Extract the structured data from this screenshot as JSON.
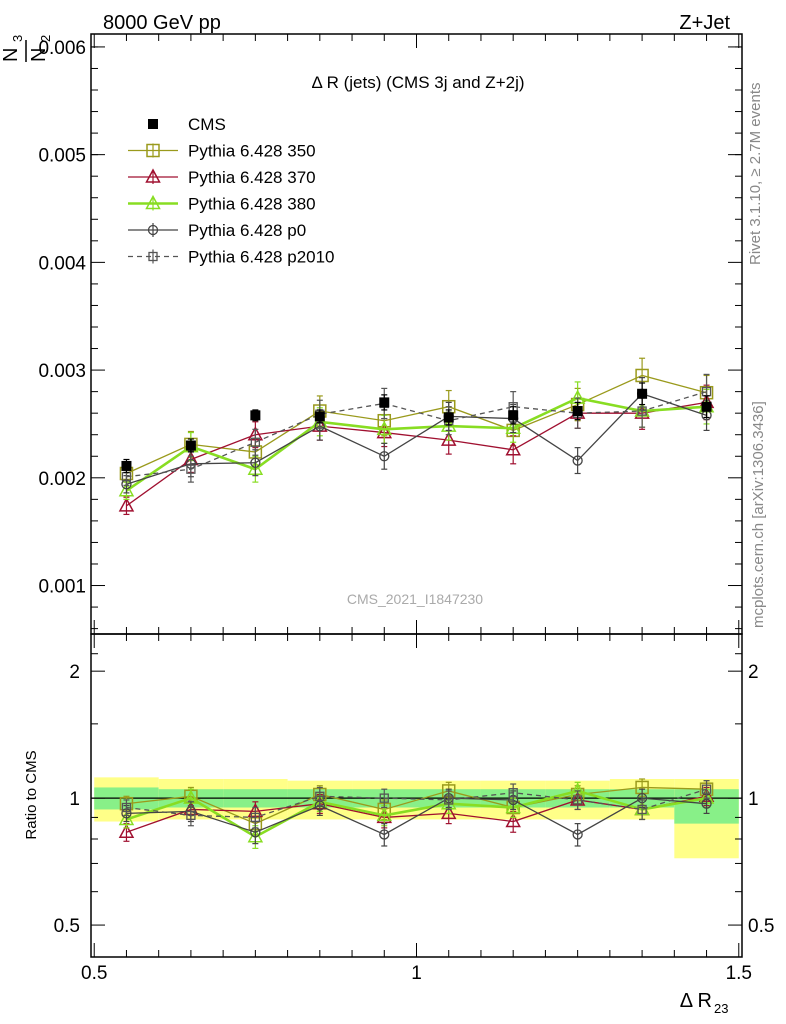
{
  "header": {
    "left": "8000 GeV pp",
    "right": "Z+Jet"
  },
  "side_text": {
    "rivet": "Rivet 3.1.10, ≥ 2.7M events",
    "mcplots": "mcplots.cern.ch [arXiv:1306.3436]"
  },
  "chart_data": [
    {
      "type": "line",
      "panel": "main",
      "title": "Δ R (jets) (CMS 3j and Z+2j)",
      "watermark": "CMS_2021_I1847230",
      "ylabel_main": "N",
      "ylabel_sub": "3",
      "ylabel_den": "N",
      "ylabel_den_sub": "2",
      "yticks": [
        "0.001",
        "0.002",
        "0.003",
        "0.004",
        "0.005",
        "0.006"
      ],
      "ylim": [
        0.00055,
        0.00612
      ],
      "x": [
        0.55,
        0.65,
        0.75,
        0.85,
        0.95,
        1.05,
        1.15,
        1.25,
        1.35,
        1.45
      ],
      "series": [
        {
          "name": "CMS",
          "color": "#000000",
          "marker": "filled-square",
          "values": [
            0.00211,
            0.0023,
            0.00258,
            0.00257,
            0.0027,
            0.00256,
            0.00258,
            0.00262,
            0.00278,
            0.00266
          ],
          "errors": [
            6e-05,
            6e-05,
            5e-05,
            6e-05,
            7e-05,
            7e-05,
            8e-05,
            8e-05,
            0.0001,
            0.0001
          ]
        },
        {
          "name": "Pythia 6.428 350",
          "color": "#9a9a1c",
          "marker": "open-square",
          "values": [
            0.00204,
            0.00231,
            0.00224,
            0.00262,
            0.00253,
            0.00266,
            0.00244,
            0.00268,
            0.00295,
            0.00279
          ],
          "errors": [
            8e-05,
            0.00012,
            0.00012,
            0.00014,
            0.00014,
            0.00015,
            0.00014,
            0.00015,
            0.00016,
            0.00016
          ]
        },
        {
          "name": "Pythia 6.428 370",
          "color": "#a01030",
          "marker": "open-triangle",
          "values": [
            0.00174,
            0.00217,
            0.0024,
            0.00248,
            0.00242,
            0.00235,
            0.00226,
            0.0026,
            0.0026,
            0.0027
          ],
          "errors": [
            8e-05,
            0.00012,
            0.00012,
            0.00013,
            0.00013,
            0.00013,
            0.00013,
            0.00014,
            0.00015,
            0.00016
          ]
        },
        {
          "name": "Pythia 6.428 380",
          "color": "#88dd22",
          "marker": "open-triangle",
          "wide": true,
          "values": [
            0.00188,
            0.00229,
            0.00208,
            0.00252,
            0.00245,
            0.00248,
            0.00246,
            0.00274,
            0.00262,
            0.00266
          ],
          "errors": [
            8e-05,
            0.00013,
            0.00012,
            0.00013,
            0.00013,
            0.00013,
            0.00013,
            0.00015,
            0.00015,
            0.00016
          ]
        },
        {
          "name": "Pythia 6.428 p0",
          "color": "#444444",
          "marker": "open-circle",
          "values": [
            0.00194,
            0.00213,
            0.00214,
            0.00248,
            0.0022,
            0.00257,
            0.00255,
            0.00216,
            0.00278,
            0.00258
          ],
          "errors": [
            8e-05,
            0.00012,
            0.00012,
            0.00013,
            0.00012,
            0.00013,
            0.00013,
            0.00012,
            0.00015,
            0.00014
          ]
        },
        {
          "name": "Pythia 6.428 p2010",
          "color": "#555555",
          "marker": "open-square-small",
          "dashed": true,
          "values": [
            0.00201,
            0.00208,
            0.00233,
            0.00259,
            0.00269,
            0.00253,
            0.00266,
            0.0026,
            0.00262,
            0.0028
          ],
          "errors": [
            8e-05,
            0.00012,
            0.00012,
            0.00013,
            0.00014,
            0.00013,
            0.00014,
            0.00014,
            0.00015,
            0.00016
          ]
        }
      ]
    },
    {
      "type": "line",
      "panel": "ratio",
      "ylabel": "Ratio to CMS",
      "yticks": [
        "0.5",
        "1",
        "2"
      ],
      "ytick_values": [
        0.5,
        1,
        2
      ],
      "ylim": [
        0.42,
        2.45
      ],
      "log_scale": true,
      "xlabel": "Δ R",
      "xlabel_sub": "23",
      "xticks": [
        "0.5",
        "1",
        "1.5"
      ],
      "xtick_values": [
        0.5,
        1.0,
        1.5
      ],
      "xlim": [
        0.495,
        1.505
      ],
      "bands": {
        "bins": [
          [
            0.5,
            0.6
          ],
          [
            0.6,
            0.7
          ],
          [
            0.7,
            0.8
          ],
          [
            0.8,
            0.9
          ],
          [
            0.9,
            1.0
          ],
          [
            1.0,
            1.1
          ],
          [
            1.1,
            1.2
          ],
          [
            1.2,
            1.3
          ],
          [
            1.3,
            1.4
          ],
          [
            1.4,
            1.5
          ]
        ],
        "inner": [
          [
            0.94,
            1.06
          ],
          [
            0.95,
            1.05
          ],
          [
            0.95,
            1.05
          ],
          [
            0.95,
            1.05
          ],
          [
            0.95,
            1.05
          ],
          [
            0.95,
            1.05
          ],
          [
            0.95,
            1.05
          ],
          [
            0.95,
            1.05
          ],
          [
            0.95,
            1.05
          ],
          [
            0.87,
            1.05
          ]
        ],
        "outer": [
          [
            0.88,
            1.12
          ],
          [
            0.89,
            1.11
          ],
          [
            0.89,
            1.11
          ],
          [
            0.89,
            1.1
          ],
          [
            0.89,
            1.1
          ],
          [
            0.89,
            1.1
          ],
          [
            0.89,
            1.1
          ],
          [
            0.89,
            1.1
          ],
          [
            0.89,
            1.11
          ],
          [
            0.72,
            1.11
          ]
        ],
        "inner_color": "#88f088",
        "outer_color": "#ffff88"
      },
      "series": [
        {
          "name": "Pythia 6.428 350",
          "color": "#9a9a1c",
          "marker": "open-square",
          "values": [
            0.97,
            1.01,
            0.87,
            1.02,
            0.94,
            1.04,
            0.95,
            1.02,
            1.06,
            1.05
          ],
          "errors": [
            0.04,
            0.05,
            0.05,
            0.05,
            0.05,
            0.05,
            0.05,
            0.05,
            0.05,
            0.05
          ]
        },
        {
          "name": "Pythia 6.428 370",
          "color": "#a01030",
          "marker": "open-triangle",
          "values": [
            0.83,
            0.94,
            0.93,
            0.97,
            0.9,
            0.92,
            0.88,
            0.99,
            0.94,
            1.01
          ],
          "errors": [
            0.04,
            0.05,
            0.05,
            0.05,
            0.05,
            0.05,
            0.05,
            0.05,
            0.05,
            0.05
          ]
        },
        {
          "name": "Pythia 6.428 380",
          "color": "#88dd22",
          "marker": "open-triangle",
          "wide": true,
          "values": [
            0.89,
            1.0,
            0.81,
            0.98,
            0.91,
            0.97,
            0.95,
            1.04,
            0.94,
            1.0
          ],
          "errors": [
            0.04,
            0.05,
            0.05,
            0.05,
            0.05,
            0.05,
            0.05,
            0.05,
            0.05,
            0.05
          ]
        },
        {
          "name": "Pythia 6.428 p0",
          "color": "#444444",
          "marker": "open-circle",
          "values": [
            0.92,
            0.93,
            0.83,
            0.96,
            0.82,
            1.0,
            0.99,
            0.82,
            1.0,
            0.97
          ],
          "errors": [
            0.04,
            0.05,
            0.05,
            0.05,
            0.05,
            0.05,
            0.05,
            0.05,
            0.05,
            0.05
          ]
        },
        {
          "name": "Pythia 6.428 p2010",
          "color": "#555555",
          "marker": "open-square-small",
          "dashed": true,
          "values": [
            0.95,
            0.91,
            0.9,
            1.01,
            1.0,
            0.99,
            1.03,
            0.99,
            0.94,
            1.05
          ],
          "errors": [
            0.04,
            0.05,
            0.05,
            0.05,
            0.05,
            0.05,
            0.05,
            0.05,
            0.05,
            0.05
          ]
        }
      ]
    }
  ]
}
